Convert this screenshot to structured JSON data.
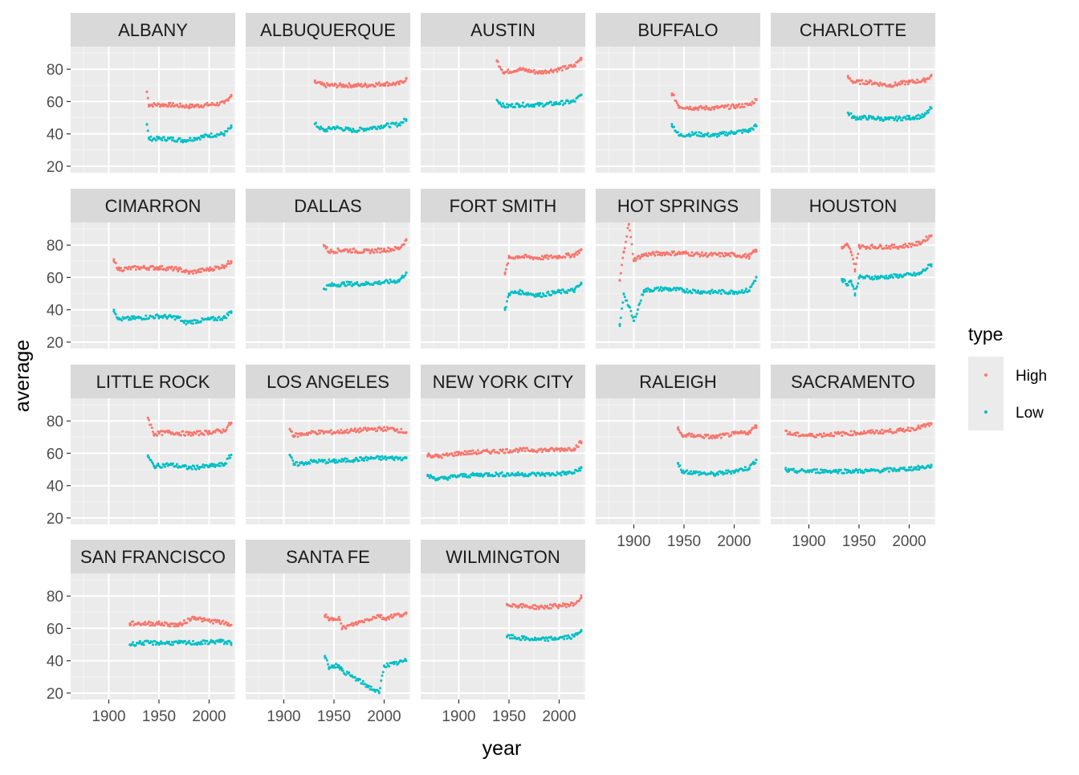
{
  "chart_data": {
    "type": "scatter",
    "facet_by": "city",
    "xlabel": "year",
    "ylabel": "average",
    "xlim": [
      1862,
      2026
    ],
    "ylim": [
      16,
      94
    ],
    "x_ticks": [
      1900,
      1950,
      2000
    ],
    "y_ticks": [
      20,
      40,
      60,
      80
    ],
    "grid": true,
    "legend": {
      "title": "type",
      "position": "right",
      "entries": [
        {
          "label": "High",
          "color": "#F8766D"
        },
        {
          "label": "Low",
          "color": "#00BFC4"
        }
      ]
    },
    "series": [
      {
        "name": "High",
        "color": "#F8766D"
      },
      {
        "name": "Low",
        "color": "#00BFC4"
      }
    ],
    "panels": [
      {
        "city": "ALBANY",
        "high": [
          [
            1938,
            66
          ],
          [
            1940,
            58
          ],
          [
            1960,
            58
          ],
          [
            1980,
            57
          ],
          [
            2000,
            58
          ],
          [
            2015,
            59
          ],
          [
            2022,
            64
          ]
        ],
        "low": [
          [
            1938,
            46
          ],
          [
            1940,
            37
          ],
          [
            1960,
            37
          ],
          [
            1975,
            36
          ],
          [
            2000,
            39
          ],
          [
            2015,
            40
          ],
          [
            2022,
            44
          ]
        ]
      },
      {
        "city": "ALBUQUERQUE",
        "high": [
          [
            1931,
            72
          ],
          [
            1940,
            70
          ],
          [
            1960,
            70
          ],
          [
            1980,
            70
          ],
          [
            2000,
            71
          ],
          [
            2015,
            71
          ],
          [
            2022,
            74
          ]
        ],
        "low": [
          [
            1931,
            46
          ],
          [
            1940,
            42
          ],
          [
            1950,
            44
          ],
          [
            1970,
            42
          ],
          [
            2000,
            45
          ],
          [
            2015,
            46
          ],
          [
            2022,
            49
          ]
        ]
      },
      {
        "city": "AUSTIN",
        "high": [
          [
            1938,
            85
          ],
          [
            1945,
            78
          ],
          [
            1960,
            80
          ],
          [
            1980,
            78
          ],
          [
            2000,
            80
          ],
          [
            2015,
            82
          ],
          [
            2022,
            87
          ]
        ],
        "low": [
          [
            1938,
            61
          ],
          [
            1945,
            57
          ],
          [
            1960,
            58
          ],
          [
            1980,
            58
          ],
          [
            2000,
            59
          ],
          [
            2015,
            60
          ],
          [
            2022,
            64
          ]
        ]
      },
      {
        "city": "BUFFALO",
        "high": [
          [
            1938,
            65
          ],
          [
            1945,
            57
          ],
          [
            1960,
            56
          ],
          [
            1980,
            56
          ],
          [
            2000,
            57
          ],
          [
            2015,
            58
          ],
          [
            2022,
            61
          ]
        ],
        "low": [
          [
            1938,
            46
          ],
          [
            1945,
            39
          ],
          [
            1960,
            40
          ],
          [
            1980,
            39
          ],
          [
            2000,
            41
          ],
          [
            2015,
            42
          ],
          [
            2022,
            45
          ]
        ]
      },
      {
        "city": "CHARLOTTE",
        "high": [
          [
            1939,
            75
          ],
          [
            1945,
            72
          ],
          [
            1960,
            72
          ],
          [
            1980,
            70
          ],
          [
            2000,
            72
          ],
          [
            2015,
            73
          ],
          [
            2022,
            76
          ]
        ],
        "low": [
          [
            1939,
            53
          ],
          [
            1945,
            50
          ],
          [
            1960,
            50
          ],
          [
            1980,
            49
          ],
          [
            2000,
            50
          ],
          [
            2015,
            51
          ],
          [
            2022,
            56
          ]
        ]
      },
      {
        "city": "CIMARRON",
        "high": [
          [
            1905,
            70
          ],
          [
            1910,
            65
          ],
          [
            1930,
            66
          ],
          [
            1950,
            66
          ],
          [
            1970,
            65
          ],
          [
            1980,
            63
          ],
          [
            2000,
            65
          ],
          [
            2015,
            67
          ],
          [
            2022,
            70
          ]
        ],
        "low": [
          [
            1905,
            40
          ],
          [
            1910,
            34
          ],
          [
            1930,
            35
          ],
          [
            1950,
            36
          ],
          [
            1970,
            35
          ],
          [
            1975,
            32
          ],
          [
            2000,
            34
          ],
          [
            2015,
            35
          ],
          [
            2022,
            39
          ]
        ]
      },
      {
        "city": "DALLAS",
        "high": [
          [
            1940,
            80
          ],
          [
            1945,
            76
          ],
          [
            1960,
            77
          ],
          [
            1980,
            76
          ],
          [
            2000,
            77
          ],
          [
            2015,
            78
          ],
          [
            2022,
            83
          ]
        ],
        "low": [
          [
            1940,
            53
          ],
          [
            1945,
            55
          ],
          [
            1960,
            56
          ],
          [
            1980,
            56
          ],
          [
            2000,
            57
          ],
          [
            2015,
            58
          ],
          [
            2022,
            63
          ]
        ]
      },
      {
        "city": "FORT SMITH",
        "high": [
          [
            1946,
            62
          ],
          [
            1950,
            72
          ],
          [
            1960,
            73
          ],
          [
            1980,
            72
          ],
          [
            2000,
            73
          ],
          [
            2015,
            74
          ],
          [
            2022,
            77
          ]
        ],
        "low": [
          [
            1946,
            40
          ],
          [
            1950,
            50
          ],
          [
            1960,
            51
          ],
          [
            1980,
            49
          ],
          [
            2000,
            51
          ],
          [
            2015,
            52
          ],
          [
            2022,
            56
          ]
        ]
      },
      {
        "city": "HOT SPRINGS",
        "high": [
          [
            1886,
            58
          ],
          [
            1890,
            76
          ],
          [
            1895,
            93
          ],
          [
            1900,
            71
          ],
          [
            1910,
            74
          ],
          [
            1930,
            75
          ],
          [
            1950,
            75
          ],
          [
            1970,
            74
          ],
          [
            2000,
            74
          ],
          [
            2015,
            73
          ],
          [
            2022,
            77
          ]
        ],
        "low": [
          [
            1886,
            30
          ],
          [
            1890,
            50
          ],
          [
            1895,
            42
          ],
          [
            1900,
            33
          ],
          [
            1910,
            52
          ],
          [
            1930,
            53
          ],
          [
            1950,
            52
          ],
          [
            1970,
            51
          ],
          [
            2000,
            51
          ],
          [
            2015,
            52
          ],
          [
            2022,
            60
          ]
        ]
      },
      {
        "city": "HOUSTON",
        "high": [
          [
            1933,
            78
          ],
          [
            1938,
            80
          ],
          [
            1942,
            76
          ],
          [
            1946,
            65
          ],
          [
            1950,
            79
          ],
          [
            1970,
            79
          ],
          [
            1990,
            79
          ],
          [
            2010,
            81
          ],
          [
            2022,
            86
          ]
        ],
        "low": [
          [
            1933,
            59
          ],
          [
            1938,
            56
          ],
          [
            1942,
            58
          ],
          [
            1946,
            50
          ],
          [
            1950,
            60
          ],
          [
            1970,
            60
          ],
          [
            1990,
            61
          ],
          [
            2010,
            62
          ],
          [
            2022,
            68
          ]
        ]
      },
      {
        "city": "LITTLE ROCK",
        "high": [
          [
            1939,
            82
          ],
          [
            1945,
            72
          ],
          [
            1960,
            73
          ],
          [
            1980,
            72
          ],
          [
            2000,
            73
          ],
          [
            2015,
            74
          ],
          [
            2022,
            79
          ]
        ],
        "low": [
          [
            1939,
            58
          ],
          [
            1945,
            52
          ],
          [
            1960,
            53
          ],
          [
            1980,
            51
          ],
          [
            2000,
            52
          ],
          [
            2015,
            53
          ],
          [
            2022,
            59
          ]
        ]
      },
      {
        "city": "LOS ANGELES",
        "high": [
          [
            1906,
            75
          ],
          [
            1910,
            71
          ],
          [
            1930,
            73
          ],
          [
            1950,
            73
          ],
          [
            1970,
            74
          ],
          [
            1990,
            75
          ],
          [
            2010,
            75
          ],
          [
            2022,
            73
          ]
        ],
        "low": [
          [
            1906,
            59
          ],
          [
            1910,
            53
          ],
          [
            1930,
            55
          ],
          [
            1950,
            55
          ],
          [
            1970,
            56
          ],
          [
            1990,
            57
          ],
          [
            2010,
            57
          ],
          [
            2022,
            57
          ]
        ]
      },
      {
        "city": "NEW YORK CITY",
        "high": [
          [
            1869,
            59
          ],
          [
            1880,
            58
          ],
          [
            1900,
            60
          ],
          [
            1930,
            61
          ],
          [
            1960,
            62
          ],
          [
            1990,
            62
          ],
          [
            2015,
            63
          ],
          [
            2022,
            67
          ]
        ],
        "low": [
          [
            1869,
            46
          ],
          [
            1880,
            44
          ],
          [
            1900,
            46
          ],
          [
            1930,
            47
          ],
          [
            1960,
            47
          ],
          [
            1990,
            47
          ],
          [
            2015,
            48
          ],
          [
            2022,
            51
          ]
        ]
      },
      {
        "city": "RALEIGH",
        "high": [
          [
            1944,
            75
          ],
          [
            1948,
            71
          ],
          [
            1960,
            71
          ],
          [
            1980,
            70
          ],
          [
            2000,
            72
          ],
          [
            2015,
            73
          ],
          [
            2022,
            77
          ]
        ],
        "low": [
          [
            1944,
            54
          ],
          [
            1948,
            49
          ],
          [
            1960,
            48
          ],
          [
            1980,
            47
          ],
          [
            2000,
            49
          ],
          [
            2015,
            51
          ],
          [
            2022,
            56
          ]
        ]
      },
      {
        "city": "SACRAMENTO",
        "high": [
          [
            1877,
            74
          ],
          [
            1880,
            72
          ],
          [
            1900,
            71
          ],
          [
            1930,
            72
          ],
          [
            1960,
            73
          ],
          [
            1990,
            74
          ],
          [
            2010,
            76
          ],
          [
            2022,
            78
          ]
        ],
        "low": [
          [
            1877,
            50
          ],
          [
            1880,
            49
          ],
          [
            1900,
            49
          ],
          [
            1930,
            49
          ],
          [
            1960,
            49
          ],
          [
            1990,
            50
          ],
          [
            2010,
            51
          ],
          [
            2022,
            52
          ]
        ]
      },
      {
        "city": "SAN FRANCISCO",
        "high": [
          [
            1921,
            63
          ],
          [
            1930,
            63
          ],
          [
            1950,
            63
          ],
          [
            1970,
            62
          ],
          [
            1985,
            67
          ],
          [
            1995,
            65
          ],
          [
            2010,
            64
          ],
          [
            2022,
            62
          ]
        ],
        "low": [
          [
            1921,
            50
          ],
          [
            1930,
            51
          ],
          [
            1950,
            51
          ],
          [
            1970,
            51
          ],
          [
            1990,
            51
          ],
          [
            2010,
            52
          ],
          [
            2022,
            51
          ]
        ]
      },
      {
        "city": "SANTA FE",
        "high": [
          [
            1941,
            68
          ],
          [
            1945,
            65
          ],
          [
            1950,
            66
          ],
          [
            1955,
            67
          ],
          [
            1958,
            60
          ],
          [
            1995,
            68
          ],
          [
            2000,
            66
          ],
          [
            2010,
            68
          ],
          [
            2022,
            69
          ]
        ],
        "low": [
          [
            1941,
            42
          ],
          [
            1945,
            36
          ],
          [
            1950,
            37
          ],
          [
            1955,
            37
          ],
          [
            1958,
            34
          ],
          [
            1995,
            20
          ],
          [
            2000,
            37
          ],
          [
            2010,
            38
          ],
          [
            2022,
            40
          ]
        ]
      },
      {
        "city": "WILMINGTON",
        "high": [
          [
            1948,
            75
          ],
          [
            1960,
            74
          ],
          [
            1980,
            73
          ],
          [
            2000,
            74
          ],
          [
            2015,
            75
          ],
          [
            2022,
            79
          ]
        ],
        "low": [
          [
            1948,
            55
          ],
          [
            1960,
            54
          ],
          [
            1980,
            53
          ],
          [
            2000,
            54
          ],
          [
            2015,
            55
          ],
          [
            2022,
            59
          ]
        ]
      }
    ]
  }
}
